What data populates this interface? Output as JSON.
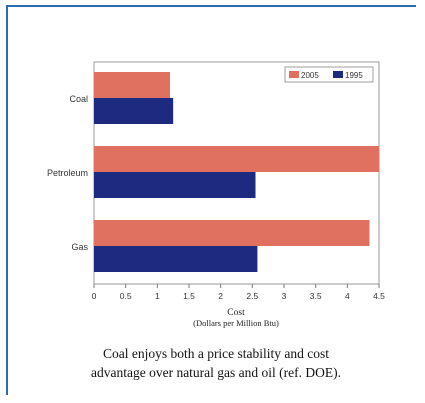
{
  "chart_data": {
    "type": "bar",
    "orientation": "horizontal",
    "categories": [
      "Coal",
      "Petroleum",
      "Gas"
    ],
    "series": [
      {
        "name": "2005",
        "values": [
          1.2,
          4.5,
          4.35
        ],
        "color": "#e07060"
      },
      {
        "name": "1995",
        "values": [
          1.25,
          2.55,
          2.58
        ],
        "color": "#1c2a7f"
      }
    ],
    "xlabel": "Cost",
    "xlabel_sub": "(Dollars per Million Btu)",
    "xlim": [
      0,
      4.5
    ],
    "xticks": [
      "0",
      "0.5",
      "1",
      "1.5",
      "2",
      "2.5",
      "3",
      "3.5",
      "4",
      "4.5"
    ],
    "grid": false,
    "legend_position": "top-right"
  },
  "caption": {
    "line1": "Coal enjoys both a price stability and cost",
    "line2": "advantage over natural gas and oil (ref. DOE)."
  }
}
